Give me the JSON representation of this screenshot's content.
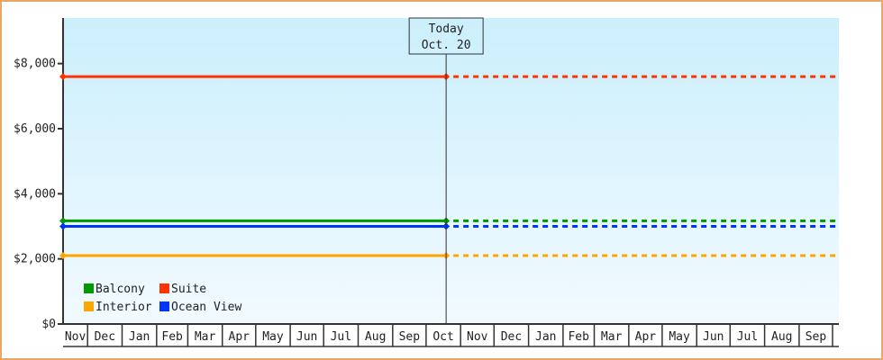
{
  "chart_data": {
    "type": "line",
    "title": "",
    "xlabel": "",
    "ylabel": "",
    "ylim": [
      0,
      9400
    ],
    "y_ticks": [
      0,
      2000,
      4000,
      6000,
      8000
    ],
    "y_tick_labels": [
      "$0",
      "$2,000",
      "$4,000",
      "$6,000",
      "$8,000"
    ],
    "x_tick_labels": [
      "Nov",
      "Dec",
      "Jan",
      "Feb",
      "Mar",
      "Apr",
      "May",
      "Jun",
      "Jul",
      "Aug",
      "Sep",
      "Oct",
      "Nov",
      "Dec",
      "Jan",
      "Feb",
      "Mar",
      "Apr",
      "May",
      "Jun",
      "Jul",
      "Aug",
      "Sep"
    ],
    "today": {
      "line1": "Today",
      "line2": "Oct. 20"
    },
    "solid_until": "today",
    "dashed_after": "today",
    "grid": false,
    "legend_placement": "bottom-left",
    "background": [
      "#cbeffc",
      "#f2faff"
    ],
    "series": [
      {
        "name": "Balcony",
        "color": "#009900",
        "values": [
          3170,
          3170
        ]
      },
      {
        "name": "Suite",
        "color": "#ff3300",
        "values": [
          7600,
          7600
        ]
      },
      {
        "name": "Interior",
        "color": "#ffa500",
        "values": [
          2100,
          2100
        ]
      },
      {
        "name": "Ocean View",
        "color": "#0033ff",
        "values": [
          3000,
          3000
        ]
      }
    ]
  }
}
